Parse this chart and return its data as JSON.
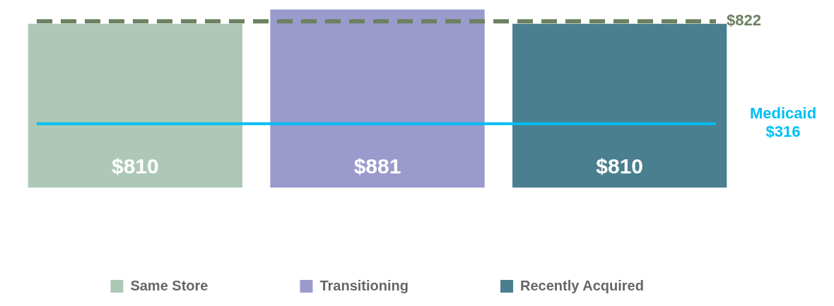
{
  "chart_data": {
    "type": "bar",
    "categories": [
      null
    ],
    "series": [
      {
        "name": "Same Store",
        "color": "#adc8b7",
        "values": [
          810
        ],
        "value_labels": [
          "$810"
        ]
      },
      {
        "name": "Transitioning",
        "color": "#9a9acc",
        "values": [
          881
        ],
        "value_labels": [
          "$881"
        ]
      },
      {
        "name": "Recently Acquired",
        "color": "#497f8f",
        "values": [
          810
        ],
        "value_labels": [
          "$810"
        ]
      }
    ],
    "tick_labels": false,
    "legend": "bottom",
    "ref_lines": [
      {
        "axis": "y",
        "value": 822,
        "label": "$822",
        "color": "#6b8160",
        "line_style": "dashed"
      },
      {
        "axis": "y",
        "value": 316,
        "label": "Medicaid\n$316",
        "color": "#00bff3",
        "line_style": "solid"
      }
    ]
  }
}
